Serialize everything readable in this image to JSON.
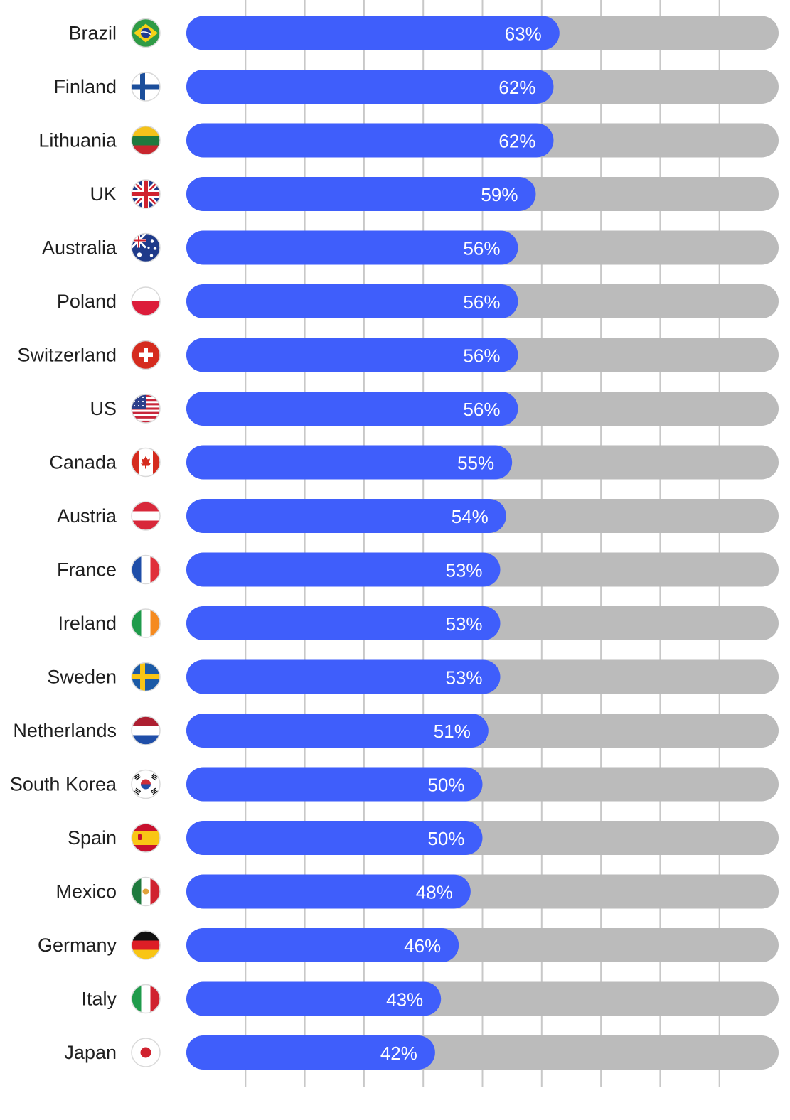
{
  "chart_data": {
    "type": "bar",
    "orientation": "horizontal",
    "categories": [
      "Brazil",
      "Finland",
      "Lithuania",
      "UK",
      "Australia",
      "Poland",
      "Switzerland",
      "US",
      "Canada",
      "Austria",
      "France",
      "Ireland",
      "Sweden",
      "Netherlands",
      "South Korea",
      "Spain",
      "Mexico",
      "Germany",
      "Italy",
      "Japan"
    ],
    "values": [
      63,
      62,
      62,
      59,
      56,
      56,
      56,
      56,
      55,
      54,
      53,
      53,
      53,
      51,
      50,
      50,
      48,
      46,
      43,
      42
    ],
    "value_labels": [
      "63%",
      "62%",
      "62%",
      "59%",
      "56%",
      "56%",
      "56%",
      "56%",
      "55%",
      "54%",
      "53%",
      "53%",
      "53%",
      "51%",
      "50%",
      "50%",
      "48%",
      "46%",
      "43%",
      "42%"
    ],
    "xlim": [
      0,
      100
    ],
    "grid": true,
    "grid_interval": 10,
    "flag_icons": [
      "brazil-flag-icon",
      "finland-flag-icon",
      "lithuania-flag-icon",
      "uk-flag-icon",
      "australia-flag-icon",
      "poland-flag-icon",
      "switzerland-flag-icon",
      "us-flag-icon",
      "canada-flag-icon",
      "austria-flag-icon",
      "france-flag-icon",
      "ireland-flag-icon",
      "sweden-flag-icon",
      "netherlands-flag-icon",
      "south-korea-flag-icon",
      "spain-flag-icon",
      "mexico-flag-icon",
      "germany-flag-icon",
      "italy-flag-icon",
      "japan-flag-icon"
    ],
    "colors": {
      "bar": "#3f5efb",
      "track": "#bbbbbb",
      "grid": "#c8c8c8",
      "value_text": "#ffffff",
      "label_text": "#1f1f1f"
    }
  }
}
